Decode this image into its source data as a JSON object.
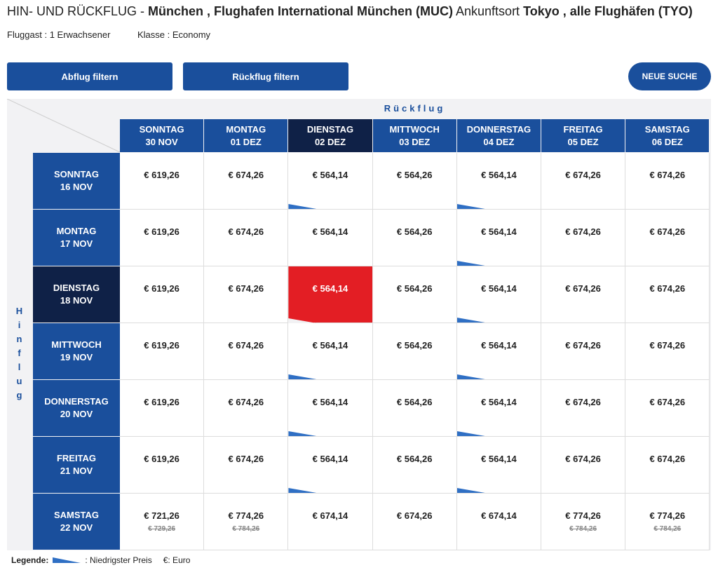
{
  "header": {
    "trip_type": "HIN- UND RÜCKFLUG -",
    "origin": "München , Flughafen International München (MUC)",
    "destination_label": "Ankunftsort",
    "destination": "Tokyo , alle Flughäfen (TYO)",
    "passengers": "Fluggast : 1 Erwachsener",
    "travel_class": "Klasse : Economy"
  },
  "buttons": {
    "outbound_filter": "Abflug filtern",
    "return_filter": "Rückflug filtern",
    "new_search": "NEUE SUCHE"
  },
  "grid": {
    "return_label": "Rückflug",
    "outbound_label": "Hinflug",
    "columns": [
      {
        "day": "SONNTAG",
        "date": "30 NOV"
      },
      {
        "day": "MONTAG",
        "date": "01 DEZ"
      },
      {
        "day": "DIENSTAG",
        "date": "02 DEZ",
        "selected": true
      },
      {
        "day": "MITTWOCH",
        "date": "03 DEZ"
      },
      {
        "day": "DONNERSTAG",
        "date": "04 DEZ"
      },
      {
        "day": "FREITAG",
        "date": "05 DEZ"
      },
      {
        "day": "SAMSTAG",
        "date": "06 DEZ"
      }
    ],
    "rows": [
      {
        "day": "SONNTAG",
        "date": "16 NOV",
        "prices": [
          {
            "price": "€ 619,26"
          },
          {
            "price": "€ 674,26"
          },
          {
            "price": "€ 564,14",
            "lowest": true
          },
          {
            "price": "€ 564,26"
          },
          {
            "price": "€ 564,14",
            "lowest": true
          },
          {
            "price": "€ 674,26"
          },
          {
            "price": "€ 674,26"
          }
        ]
      },
      {
        "day": "MONTAG",
        "date": "17 NOV",
        "prices": [
          {
            "price": "€ 619,26"
          },
          {
            "price": "€ 674,26"
          },
          {
            "price": "€ 564,14"
          },
          {
            "price": "€ 564,26"
          },
          {
            "price": "€ 564,14",
            "lowest": true
          },
          {
            "price": "€ 674,26"
          },
          {
            "price": "€ 674,26"
          }
        ]
      },
      {
        "day": "DIENSTAG",
        "date": "18 NOV",
        "selected": true,
        "prices": [
          {
            "price": "€ 619,26"
          },
          {
            "price": "€ 674,26"
          },
          {
            "price": "€ 564,14",
            "selected": true
          },
          {
            "price": "€ 564,26"
          },
          {
            "price": "€ 564,14",
            "lowest": true
          },
          {
            "price": "€ 674,26"
          },
          {
            "price": "€ 674,26"
          }
        ]
      },
      {
        "day": "MITTWOCH",
        "date": "19 NOV",
        "prices": [
          {
            "price": "€ 619,26"
          },
          {
            "price": "€ 674,26"
          },
          {
            "price": "€ 564,14",
            "lowest": true
          },
          {
            "price": "€ 564,26"
          },
          {
            "price": "€ 564,14",
            "lowest": true
          },
          {
            "price": "€ 674,26"
          },
          {
            "price": "€ 674,26"
          }
        ]
      },
      {
        "day": "DONNERSTAG",
        "date": "20 NOV",
        "prices": [
          {
            "price": "€ 619,26"
          },
          {
            "price": "€ 674,26"
          },
          {
            "price": "€ 564,14",
            "lowest": true
          },
          {
            "price": "€ 564,26"
          },
          {
            "price": "€ 564,14",
            "lowest": true
          },
          {
            "price": "€ 674,26"
          },
          {
            "price": "€ 674,26"
          }
        ]
      },
      {
        "day": "FREITAG",
        "date": "21 NOV",
        "prices": [
          {
            "price": "€ 619,26"
          },
          {
            "price": "€ 674,26"
          },
          {
            "price": "€ 564,14",
            "lowest": true
          },
          {
            "price": "€ 564,26"
          },
          {
            "price": "€ 564,14",
            "lowest": true
          },
          {
            "price": "€ 674,26"
          },
          {
            "price": "€ 674,26"
          }
        ]
      },
      {
        "day": "SAMSTAG",
        "date": "22 NOV",
        "prices": [
          {
            "price": "€ 721,26",
            "old_price": "€ 729,26"
          },
          {
            "price": "€ 774,26",
            "old_price": "€ 784,26"
          },
          {
            "price": "€ 674,14"
          },
          {
            "price": "€ 674,26"
          },
          {
            "price": "€ 674,14"
          },
          {
            "price": "€ 774,26",
            "old_price": "€ 784,26"
          },
          {
            "price": "€ 774,26",
            "old_price": "€ 784,26"
          }
        ]
      }
    ]
  },
  "legend": {
    "title": "Legende:",
    "lowest": ": Niedrigster Preis",
    "currency": "€: Euro"
  }
}
